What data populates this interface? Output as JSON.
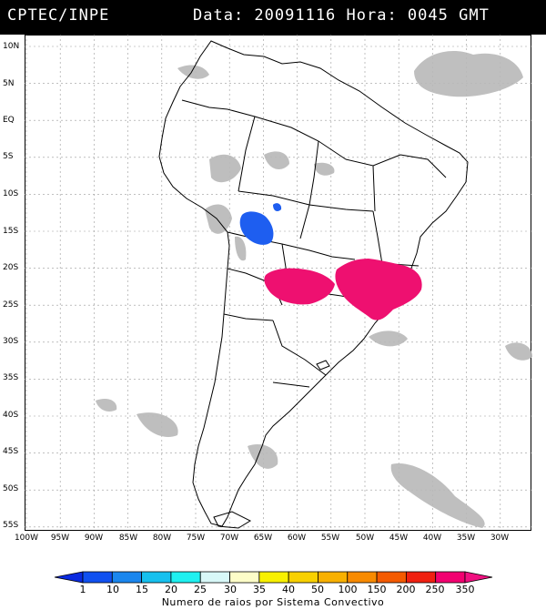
{
  "header": {
    "left": "CPTEC/INPE",
    "right": "Data: 20091116 Hora: 0045 GMT"
  },
  "map": {
    "lat_labels": [
      "10N",
      "5N",
      "EQ",
      "5S",
      "10S",
      "15S",
      "20S",
      "25S",
      "30S",
      "35S",
      "40S",
      "45S",
      "50S",
      "55S"
    ],
    "lon_labels": [
      "100W",
      "95W",
      "90W",
      "85W",
      "80W",
      "75W",
      "70W",
      "65W",
      "60W",
      "55W",
      "50W",
      "45W",
      "40W",
      "35W",
      "30W"
    ],
    "convective_systems": [
      {
        "name": "bolivia-cluster",
        "color": "#1e5ef0",
        "lightning_class": "10"
      },
      {
        "name": "paraguay-cluster",
        "color": "#ee1070",
        "lightning_class": "350"
      },
      {
        "name": "southeast-brazil-cluster",
        "color": "#ee1070",
        "lightning_class": "350"
      }
    ],
    "cloud_color": "#b8b8b8",
    "land_outline_color": "#000000"
  },
  "colorbar": {
    "ticks": [
      "1",
      "10",
      "15",
      "20",
      "25",
      "30",
      "35",
      "40",
      "50",
      "100",
      "150",
      "200",
      "250",
      "350"
    ],
    "colors": [
      "#0a2ae0",
      "#1050f0",
      "#1a86ee",
      "#16c0ee",
      "#1ff0f0",
      "#d8f8f8",
      "#fdfdc8",
      "#f8f000",
      "#f8d000",
      "#f8b000",
      "#f88a00",
      "#f45a00",
      "#f02010",
      "#f20070",
      "#f01080"
    ],
    "caption": "Numero de raios por Sistema Convectivo"
  }
}
